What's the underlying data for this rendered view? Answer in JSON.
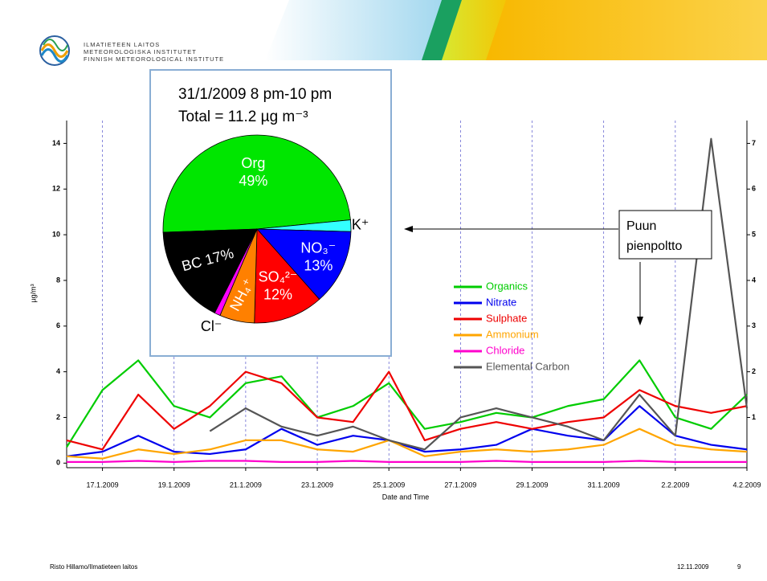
{
  "header": {
    "org_lines": [
      "ILMATIETEEN LAITOS",
      "METEOROLOGISKA INSTITUTET",
      "FINNISH METEOROLOGICAL INSTITUTE"
    ]
  },
  "footer": {
    "author": "Risto Hillamo/Ilmatieteen laitos",
    "date": "12.11.2009",
    "page": "9"
  },
  "chart_data": [
    {
      "type": "line",
      "x_label": "Date and Time",
      "y_label": "µg/m³",
      "x": [
        "16.1.2009",
        "17.1.2009",
        "18.1.2009",
        "19.1.2009",
        "20.1.2009",
        "21.1.2009",
        "22.1.2009",
        "23.1.2009",
        "24.1.2009",
        "25.1.2009",
        "26.1.2009",
        "27.1.2009",
        "28.1.2009",
        "29.1.2009",
        "30.1.2009",
        "31.1.2009",
        "1.2.2009",
        "2.2.2009",
        "3.2.2009",
        "4.2.2009"
      ],
      "xlim": [
        "16.1.2009",
        "4.2.2009"
      ],
      "xticks": [
        "17.1.2009",
        "19.1.2009",
        "21.1.2009",
        "23.1.2009",
        "25.1.2009",
        "27.1.2009",
        "29.1.2009",
        "31.1.2009",
        "2.2.2009",
        "4.2.2009"
      ],
      "ylim": [
        -0.2,
        15
      ],
      "yticks": [
        0,
        2,
        4,
        6,
        8,
        10,
        12,
        14
      ],
      "y2lim": [
        -0.1,
        7.5
      ],
      "y2ticks": [
        1,
        2,
        3,
        4,
        5,
        6,
        7
      ],
      "grid": "x",
      "series": [
        {
          "name": "Organics",
          "color": "#00cc00",
          "values": [
            0.7,
            3.2,
            4.5,
            2.5,
            2.0,
            3.5,
            3.8,
            2.0,
            2.5,
            3.5,
            1.5,
            1.8,
            2.2,
            2.0,
            2.5,
            2.8,
            4.5,
            2.0,
            1.5,
            3.0
          ]
        },
        {
          "name": "Nitrate",
          "color": "#0000ee",
          "values": [
            0.3,
            0.5,
            1.2,
            0.5,
            0.4,
            0.6,
            1.5,
            0.8,
            1.2,
            1.0,
            0.5,
            0.6,
            0.8,
            1.5,
            1.2,
            1.0,
            2.5,
            1.2,
            0.8,
            0.6
          ]
        },
        {
          "name": "Sulphate",
          "color": "#ee0000",
          "values": [
            1.0,
            0.6,
            3.0,
            1.5,
            2.5,
            4.0,
            3.5,
            2.0,
            1.8,
            4.0,
            1.0,
            1.5,
            1.8,
            1.5,
            1.8,
            2.0,
            3.2,
            2.5,
            2.2,
            2.5
          ]
        },
        {
          "name": "Ammonium",
          "color": "#ffa500",
          "values": [
            0.3,
            0.2,
            0.6,
            0.4,
            0.6,
            1.0,
            1.0,
            0.6,
            0.5,
            1.0,
            0.3,
            0.5,
            0.6,
            0.5,
            0.6,
            0.8,
            1.5,
            0.8,
            0.6,
            0.5
          ]
        },
        {
          "name": "Chloride",
          "color": "#ff00cc",
          "values": [
            0.05,
            0.05,
            0.1,
            0.05,
            0.1,
            0.1,
            0.05,
            0.05,
            0.1,
            0.05,
            0.05,
            0.05,
            0.1,
            0.05,
            0.05,
            0.05,
            0.1,
            0.05,
            0.05,
            0.05
          ]
        },
        {
          "name": "Elemental Carbon",
          "color": "#555555",
          "axis": "y2",
          "values": [
            null,
            null,
            null,
            null,
            0.7,
            1.2,
            0.8,
            0.6,
            0.8,
            0.5,
            0.3,
            1.0,
            1.2,
            1.0,
            0.8,
            0.5,
            1.5,
            0.6,
            7.1,
            1.2
          ]
        }
      ],
      "annotation": [
        "Puun",
        "pienpoltto"
      ]
    },
    {
      "type": "pie",
      "title": "31/1/2009 8 pm-10 pm",
      "subtitle": "Total = 11.2 µg m⁻³",
      "categories": [
        "Org",
        "K⁺",
        "NO₃⁻",
        "SO₄²⁻",
        "NH₄⁺",
        "Cl⁻",
        "BC"
      ],
      "values": [
        49,
        2,
        13,
        12,
        6,
        1,
        17
      ],
      "value_labels": [
        "49%",
        null,
        "13%",
        "12%",
        null,
        null,
        "17%"
      ],
      "colors": [
        "#00e600",
        "#33ffff",
        "#0000ff",
        "#ff0000",
        "#ff8000",
        "#ff00ff",
        "#000000"
      ]
    }
  ]
}
